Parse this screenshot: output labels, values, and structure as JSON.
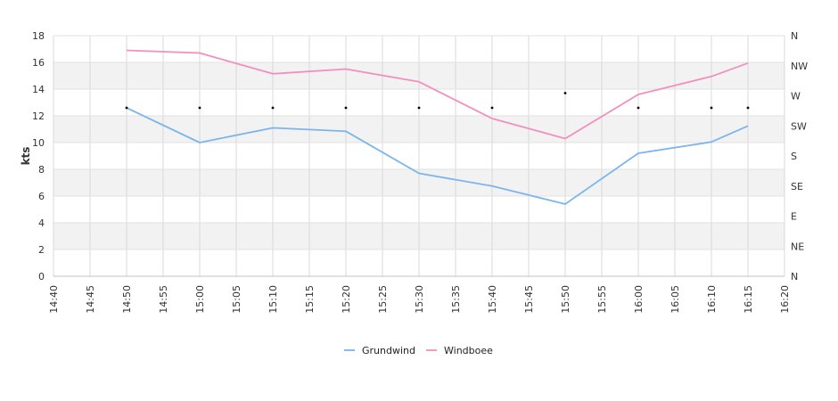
{
  "chart_data": {
    "type": "line",
    "title": "",
    "ylabel": "kts",
    "ylim": [
      0,
      18
    ],
    "yticks": [
      0,
      2,
      4,
      6,
      8,
      10,
      12,
      14,
      16,
      18
    ],
    "xlim": [
      "14:40",
      "16:20"
    ],
    "xticks": [
      "14:40",
      "14:45",
      "14:50",
      "14:55",
      "15:00",
      "15:05",
      "15:10",
      "15:15",
      "15:20",
      "15:25",
      "15:30",
      "15:35",
      "15:40",
      "15:45",
      "15:50",
      "15:55",
      "16:00",
      "16:05",
      "16:10",
      "16:15",
      "16:20"
    ],
    "x": [
      "14:50",
      "15:00",
      "15:10",
      "15:20",
      "15:30",
      "15:40",
      "15:50",
      "16:00",
      "16:10",
      "16:15"
    ],
    "series": [
      {
        "name": "Grundwind",
        "color": "#7cb5ec",
        "values": [
          12.6,
          10.0,
          11.1,
          10.85,
          7.7,
          6.75,
          5.4,
          9.2,
          10.05,
          11.25
        ]
      },
      {
        "name": "Windboee",
        "color": "#f28fbf",
        "values": [
          16.9,
          16.7,
          15.15,
          15.5,
          14.55,
          11.8,
          10.3,
          13.6,
          14.95,
          15.95
        ]
      }
    ],
    "direction": {
      "labels": [
        "N",
        "NE",
        "E",
        "SE",
        "S",
        "SW",
        "W",
        "NW",
        "N"
      ],
      "values": [
        "W",
        "W",
        "W",
        "W",
        "W",
        "W",
        "W",
        "W",
        "W",
        "W"
      ],
      "points_y": [
        12.6,
        12.6,
        12.6,
        12.6,
        12.6,
        12.6,
        13.7,
        12.6,
        12.6,
        12.6
      ]
    },
    "grid": true,
    "legend_position": "bottom-center"
  }
}
